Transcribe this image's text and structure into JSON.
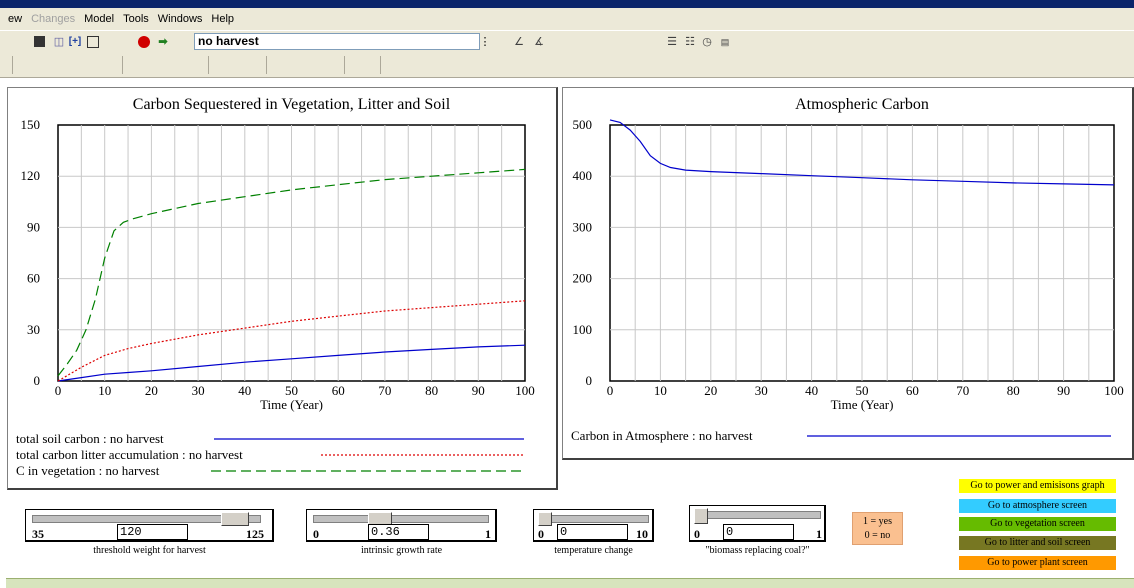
{
  "menu": {
    "items": [
      "ew",
      "Changes",
      "Model",
      "Tools",
      "Windows",
      "Help"
    ],
    "disabled": [
      false,
      true,
      false,
      false,
      false,
      false
    ]
  },
  "toolbar": {
    "run_name": "no harvest",
    "icons": [
      "save-icon",
      "open-icon",
      "build-icon",
      "sketch-icon",
      "stop-icon",
      "simulate-icon"
    ]
  },
  "chart_left": {
    "title": "Carbon Sequestered in Vegetation, Litter and Soil",
    "xlabel": "Time (Year)",
    "legend": [
      "total soil carbon : no harvest",
      "total carbon litter accumulation : no harvest",
      "C in vegetation : no harvest"
    ]
  },
  "chart_right": {
    "title": "Atmospheric Carbon",
    "xlabel": "Time (Year)",
    "legend": [
      "Carbon in Atmosphere : no harvest"
    ]
  },
  "chart_data": [
    {
      "type": "line",
      "title": "Carbon Sequestered in Vegetation, Litter and Soil",
      "xlabel": "Time (Year)",
      "ylabel": "",
      "xlim": [
        0,
        100
      ],
      "ylim": [
        0,
        150
      ],
      "xticks": [
        0,
        10,
        20,
        30,
        40,
        50,
        60,
        70,
        80,
        90,
        100
      ],
      "yticks": [
        0,
        30,
        60,
        90,
        120,
        150
      ],
      "grid": true,
      "legend_position": "bottom",
      "series": [
        {
          "name": "total soil carbon : no harvest",
          "color": "#0000cc",
          "style": "solid",
          "x": [
            0,
            5,
            10,
            15,
            20,
            30,
            40,
            50,
            60,
            70,
            80,
            90,
            100
          ],
          "y": [
            0,
            2,
            4,
            5,
            6,
            8.5,
            11,
            13,
            15,
            17,
            18.5,
            20,
            21
          ]
        },
        {
          "name": "total carbon litter accumulation : no harvest",
          "color": "#dd0000",
          "style": "dotted",
          "x": [
            0,
            5,
            10,
            15,
            20,
            30,
            40,
            50,
            60,
            70,
            80,
            90,
            100
          ],
          "y": [
            0,
            8,
            15,
            19,
            22,
            27,
            31,
            35,
            38,
            41,
            43,
            45,
            47
          ]
        },
        {
          "name": "C in vegetation : no harvest",
          "color": "#008000",
          "style": "dashed",
          "x": [
            0,
            2,
            4,
            6,
            8,
            10,
            12,
            14,
            16,
            20,
            30,
            40,
            50,
            60,
            70,
            80,
            90,
            100
          ],
          "y": [
            3,
            10,
            18,
            30,
            48,
            72,
            88,
            93,
            95,
            98,
            104,
            108,
            112,
            115,
            118,
            120,
            122,
            124
          ]
        }
      ]
    },
    {
      "type": "line",
      "title": "Atmospheric Carbon",
      "xlabel": "Time (Year)",
      "ylabel": "",
      "xlim": [
        0,
        100
      ],
      "ylim": [
        0,
        500
      ],
      "xticks": [
        0,
        10,
        20,
        30,
        40,
        50,
        60,
        70,
        80,
        90,
        100
      ],
      "yticks": [
        0,
        100,
        200,
        300,
        400,
        500
      ],
      "grid": true,
      "legend_position": "bottom",
      "series": [
        {
          "name": "Carbon in Atmosphere : no harvest",
          "color": "#0000cc",
          "style": "solid",
          "x": [
            0,
            2,
            4,
            6,
            8,
            10,
            12,
            15,
            20,
            30,
            40,
            50,
            60,
            70,
            80,
            90,
            100
          ],
          "y": [
            510,
            505,
            490,
            468,
            440,
            425,
            417,
            412,
            409,
            405,
            401,
            397,
            393,
            390,
            387,
            385,
            383
          ]
        }
      ]
    }
  ],
  "sliders": [
    {
      "label": "threshold weight for harvest",
      "min": "35",
      "max": "125",
      "value": "120",
      "fraction": 0.94
    },
    {
      "label": "intrinsic growth rate",
      "min": "0",
      "max": "1",
      "value": "0.36",
      "fraction": 0.36
    },
    {
      "label": "temperature change",
      "min": "0",
      "max": "10",
      "value": "0",
      "fraction": 0.0
    },
    {
      "label": "\"biomass replacing coal?\"",
      "min": "0",
      "max": "1",
      "value": "0",
      "fraction": 0.0
    }
  ],
  "yesno": {
    "line1": "1 = yes",
    "line2": "0 = no"
  },
  "nav_buttons": [
    {
      "label": "Go to power and emisisons graph",
      "color": "#ffff00"
    },
    {
      "label": "Go to atmosphere screen",
      "color": "#33ccff"
    },
    {
      "label": "Go to vegetation screen",
      "color": "#66bb00"
    },
    {
      "label": "Go to litter and soil screen",
      "color": "#777722"
    },
    {
      "label": "Go to power plant screen",
      "color": "#ff9900"
    }
  ]
}
